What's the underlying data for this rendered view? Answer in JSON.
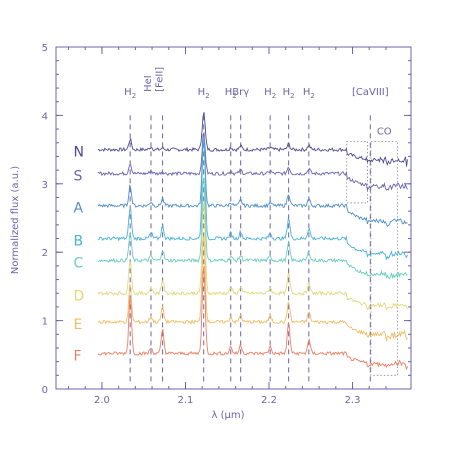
{
  "chart_data": {
    "type": "line",
    "xlabel": "λ (μm)",
    "ylabel": "Normalized flux (a.u.)",
    "xlim": [
      1.945,
      2.37
    ],
    "ylim": [
      0,
      5
    ],
    "x_ticks": [
      2.0,
      2.1,
      2.2,
      2.3
    ],
    "x_tick_labels": [
      "2.0",
      "2.1",
      "2.2",
      "2.3"
    ],
    "y_ticks": [
      0,
      1,
      2,
      3,
      4,
      5
    ],
    "y_tick_labels": [
      "0",
      "1",
      "2",
      "3",
      "4",
      "5"
    ],
    "line_markers": [
      {
        "x": 2.0338,
        "label": "H2"
      },
      {
        "x": 2.0587,
        "label": "HeI"
      },
      {
        "x": 2.0726,
        "label": "[FeII]"
      },
      {
        "x": 2.1218,
        "label": "H2"
      },
      {
        "x": 2.1542,
        "label": "H2"
      },
      {
        "x": 2.1661,
        "label": "Brγ"
      },
      {
        "x": 2.2014,
        "label": "H2"
      },
      {
        "x": 2.2235,
        "label": "H2"
      },
      {
        "x": 2.2477,
        "label": "H2"
      },
      {
        "x": 2.3213,
        "label": "[CaVIII]"
      }
    ],
    "boxes": [
      {
        "label": "",
        "x_range": [
          2.293,
          2.318
        ],
        "y_range": [
          2.72,
          3.62
        ]
      },
      {
        "label": "CO",
        "x_range": [
          2.322,
          2.354
        ],
        "y_range": [
          0.2,
          3.62
        ]
      }
    ],
    "series": [
      {
        "name": "N",
        "color": "#4e4a8f",
        "offset": 3.5,
        "lines": [
          0.15,
          0.04,
          0.02,
          0.55,
          0.03,
          0.05,
          0.03,
          0.08,
          0.06
        ],
        "co": -0.15
      },
      {
        "name": "S",
        "color": "#6a62b0",
        "offset": 3.15,
        "lines": [
          0.15,
          0.04,
          0.03,
          0.6,
          0.04,
          0.05,
          0.04,
          0.1,
          0.07
        ],
        "co": -0.18
      },
      {
        "name": "A",
        "color": "#4f8fc7",
        "offset": 2.68,
        "lines": [
          0.3,
          0.06,
          0.1,
          1.0,
          0.05,
          0.08,
          0.05,
          0.18,
          0.1
        ],
        "co": -0.22
      },
      {
        "name": "B",
        "color": "#49b2d8",
        "offset": 2.2,
        "lines": [
          0.45,
          0.08,
          0.18,
          1.55,
          0.08,
          0.1,
          0.08,
          0.3,
          0.15
        ],
        "co": -0.22
      },
      {
        "name": "C",
        "color": "#68cdbd",
        "offset": 1.88,
        "lines": [
          0.4,
          0.06,
          0.15,
          1.25,
          0.06,
          0.07,
          0.06,
          0.25,
          0.12
        ],
        "co": -0.2
      },
      {
        "name": "D",
        "color": "#dfd97a",
        "offset": 1.4,
        "lines": [
          0.5,
          0.08,
          0.2,
          1.35,
          0.08,
          0.1,
          0.08,
          0.28,
          0.14
        ],
        "co": -0.18
      },
      {
        "name": "E",
        "color": "#f2bc62",
        "offset": 0.98,
        "lines": [
          0.55,
          0.08,
          0.22,
          1.3,
          0.08,
          0.1,
          0.08,
          0.3,
          0.15
        ],
        "co": -0.18
      },
      {
        "name": "F",
        "color": "#ef7f63",
        "offset": 0.52,
        "lines": [
          0.85,
          0.08,
          0.35,
          1.3,
          0.1,
          0.12,
          0.1,
          0.45,
          0.2
        ],
        "co": -0.15
      }
    ]
  }
}
